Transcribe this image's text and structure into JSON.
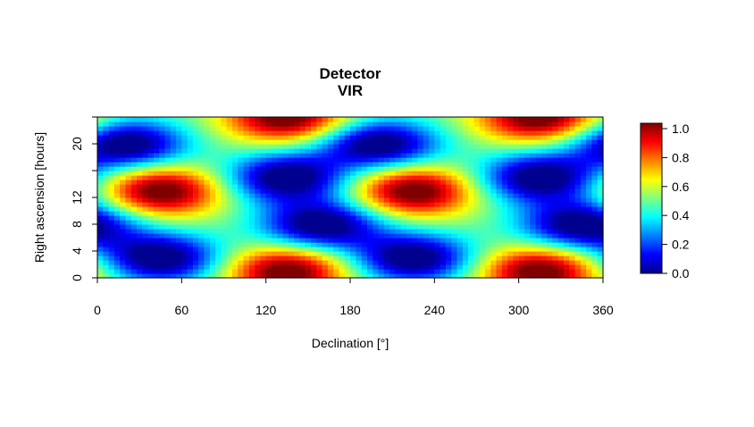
{
  "chart_data": {
    "type": "heatmap",
    "title": "Detector",
    "subtitle": "VIR",
    "xlabel": "Declination [°]",
    "ylabel": "Right ascension [hours]",
    "xlim": [
      0,
      360
    ],
    "ylim": [
      0,
      24
    ],
    "x_ticks": [
      "0",
      "60",
      "120",
      "180",
      "240",
      "300",
      "360"
    ],
    "y_ticks": [
      "0",
      "4",
      "8",
      "12",
      "20"
    ],
    "y_minor_ticks": [
      16,
      24
    ],
    "colorbar": {
      "ticks": [
        "0.0",
        "0.2",
        "0.4",
        "0.6",
        "0.8",
        "1.0"
      ],
      "range": [
        0,
        1
      ],
      "colors": [
        "#00008F",
        "#0000FF",
        "#0080FF",
        "#00FFFF",
        "#80FF80",
        "#FFFF00",
        "#FF8000",
        "#FF0000",
        "#800000"
      ]
    },
    "features": [
      {
        "kind": "max",
        "dec": 45,
        "ra": 13,
        "value": 1.0
      },
      {
        "kind": "max",
        "dec": 225,
        "ra": 13,
        "value": 1.0
      },
      {
        "kind": "max",
        "dec": 135,
        "ra": 1,
        "value": 1.0
      },
      {
        "kind": "max",
        "dec": 315,
        "ra": 1,
        "value": 1.0
      },
      {
        "kind": "max",
        "dec": 135,
        "ra": 24,
        "value": 1.0
      },
      {
        "kind": "max",
        "dec": 315,
        "ra": 24,
        "value": 1.0
      },
      {
        "kind": "min",
        "dec": 20,
        "ra": 20,
        "value": 0.0
      },
      {
        "kind": "min",
        "dec": 200,
        "ra": 20,
        "value": 0.0
      },
      {
        "kind": "min",
        "dec": 45,
        "ra": 3,
        "value": 0.0
      },
      {
        "kind": "min",
        "dec": 225,
        "ra": 3,
        "value": 0.0
      },
      {
        "kind": "min",
        "dec": 135,
        "ra": 15,
        "value": 0.0
      },
      {
        "kind": "min",
        "dec": 315,
        "ra": 15,
        "value": 0.0
      },
      {
        "kind": "min",
        "dec": 160,
        "ra": 8,
        "value": 0.0
      },
      {
        "kind": "min",
        "dec": 345,
        "ra": 8,
        "value": 0.0
      }
    ]
  }
}
